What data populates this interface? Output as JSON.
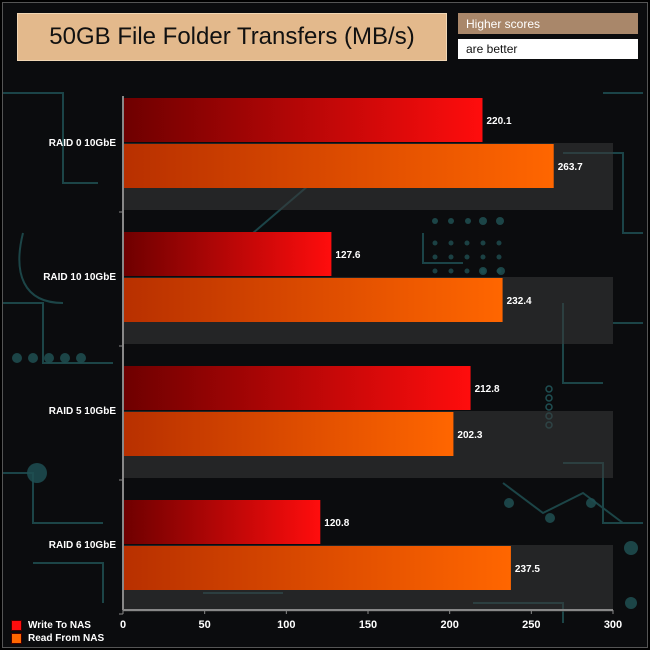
{
  "header": {
    "title": "50GB File Folder Transfers (MB/s)",
    "note_line1": "Higher scores",
    "note_line2": "are better"
  },
  "colors": {
    "write_dark": "#6e0000",
    "write_light": "#ff0d0d",
    "read_dark": "#b83000",
    "read_light": "#ff6600",
    "title_bg": "#e3b98c",
    "note_bg": "#a9876a",
    "circuit": "#1f4f52"
  },
  "chart_data": {
    "type": "bar",
    "orientation": "horizontal",
    "title": "50GB File Folder Transfers (MB/s)",
    "categories": [
      "RAID 0 10GbE",
      "RAID 10 10GbE",
      "RAID 5 10GbE",
      "RAID 6 10GbE"
    ],
    "series": [
      {
        "name": "Write To NAS",
        "values": [
          220.1,
          127.6,
          212.8,
          120.8
        ]
      },
      {
        "name": "Read From NAS",
        "values": [
          263.7,
          232.4,
          202.3,
          237.5
        ]
      }
    ],
    "xlim": [
      0,
      300
    ],
    "xticks": [
      0,
      50,
      100,
      150,
      200,
      250,
      300
    ],
    "xlabel": "",
    "ylabel": "",
    "grid": false,
    "legend_position": "bottom-left"
  }
}
